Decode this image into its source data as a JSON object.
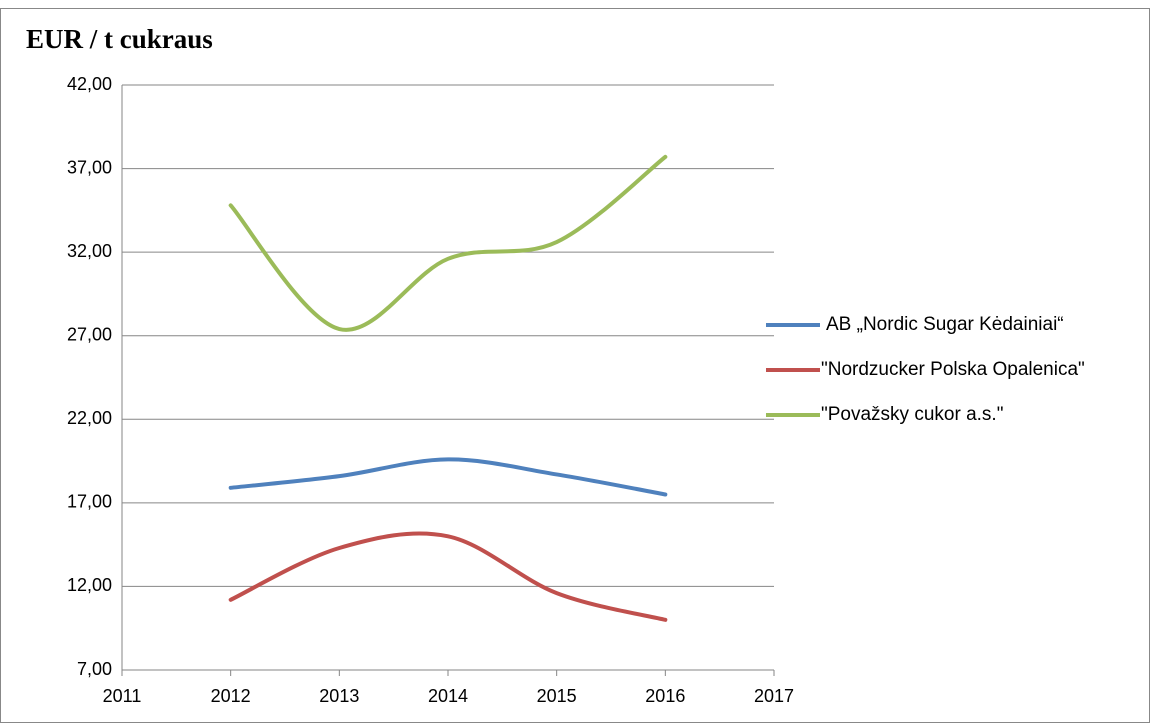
{
  "chart_data": {
    "type": "line",
    "title": "EUR / t cukraus",
    "x": [
      2012,
      2013,
      2014,
      2015,
      2016
    ],
    "series": [
      {
        "name": "AB „Nordic Sugar Kėdainiai“",
        "color": "#4f81bd",
        "values": [
          17.9,
          18.6,
          19.6,
          18.7,
          17.5
        ]
      },
      {
        "name": "\"Nordzucker Polska Opalenica\"",
        "color": "#c0504d",
        "values": [
          11.2,
          14.3,
          15.0,
          11.6,
          10.0
        ]
      },
      {
        "name": "\"Považsky cukor a.s.\"",
        "color": "#9bbb59",
        "values": [
          34.8,
          27.4,
          31.6,
          32.6,
          37.7
        ]
      }
    ],
    "xlim": [
      2011,
      2017
    ],
    "xticks": [
      2011,
      2012,
      2013,
      2014,
      2015,
      2016,
      2017
    ],
    "ylim": [
      7,
      42
    ],
    "yticks": [
      {
        "value": 7,
        "label": "7,00"
      },
      {
        "value": 12,
        "label": "12,00"
      },
      {
        "value": 17,
        "label": "17,00"
      },
      {
        "value": 22,
        "label": "22,00"
      },
      {
        "value": 27,
        "label": "27,00"
      },
      {
        "value": 32,
        "label": "32,00"
      },
      {
        "value": 37,
        "label": "37,00"
      },
      {
        "value": 42,
        "label": "42,00"
      }
    ],
    "grid": true,
    "smooth": true,
    "legend": "right"
  }
}
